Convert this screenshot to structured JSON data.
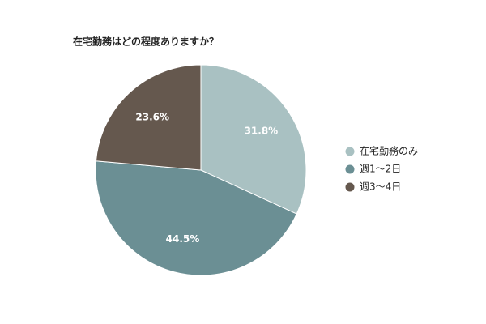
{
  "chart_data": {
    "type": "pie",
    "title": "在宅勤務はどの程度ありますか？",
    "categories": [
      "在宅勤務のみ",
      "週1～2日",
      "週3～4日"
    ],
    "values": [
      31.8,
      44.5,
      23.6
    ],
    "value_labels": [
      "31.8%",
      "44.5%",
      "23.6%"
    ],
    "colors": [
      "#a9c1c2",
      "#6b8f94",
      "#65584e"
    ],
    "legend": "right"
  }
}
